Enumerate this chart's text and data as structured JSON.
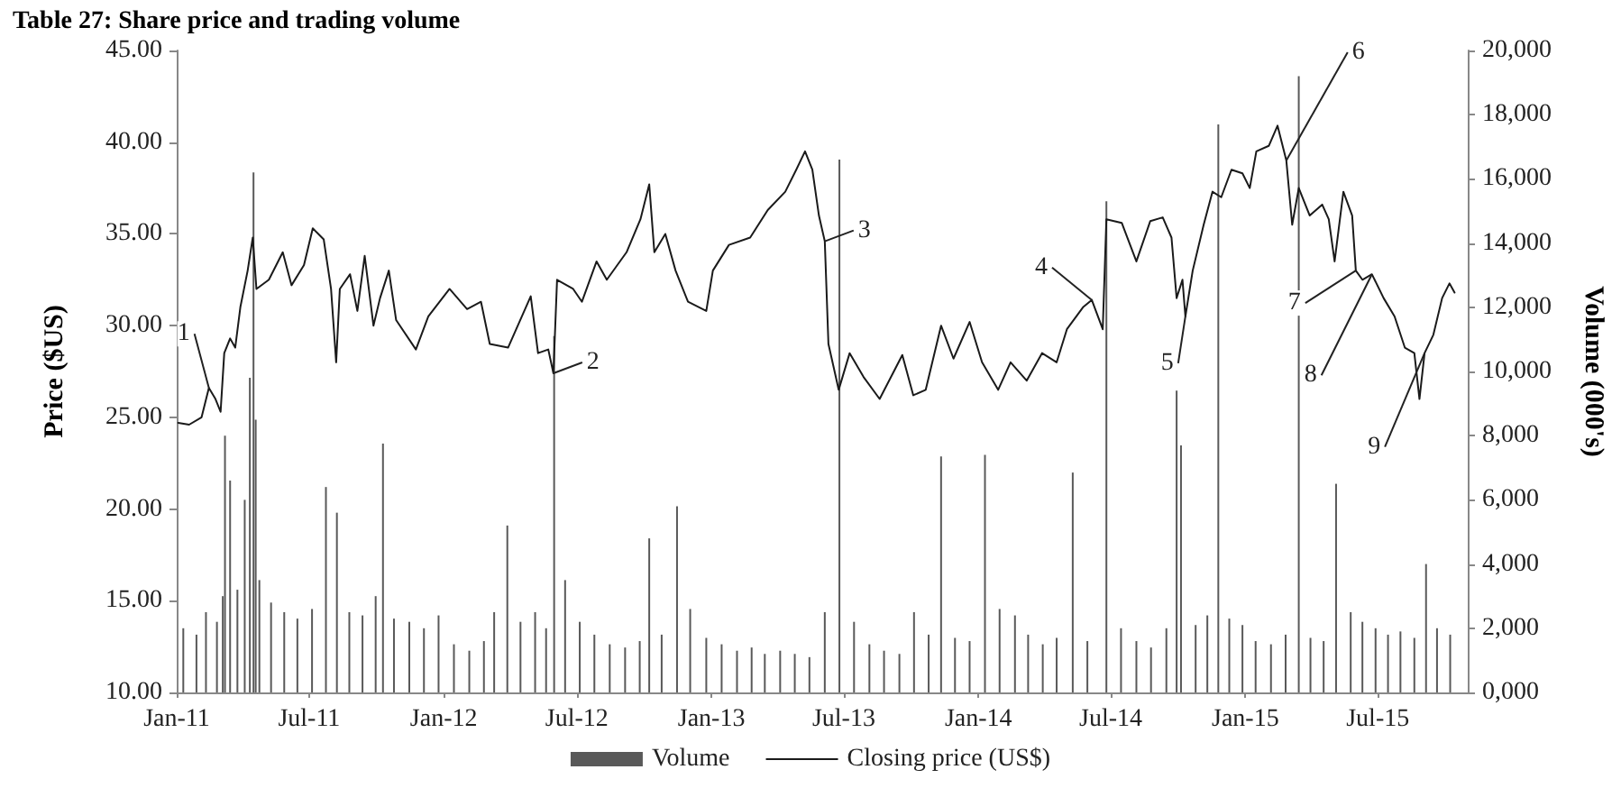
{
  "chart_data": {
    "type": "line",
    "title": "Table 27: Share price and trading volume",
    "ylabel": "Price ($US)",
    "y2label": "Volume (000's)",
    "xlim": [
      "2011-01-01",
      "2015-11-01"
    ],
    "xticks": [
      {
        "value": "2011-01-01",
        "label": "Jan-11"
      },
      {
        "value": "2011-07-01",
        "label": "Jul-11"
      },
      {
        "value": "2012-01-01",
        "label": "Jan-12"
      },
      {
        "value": "2012-07-01",
        "label": "Jul-12"
      },
      {
        "value": "2013-01-01",
        "label": "Jan-13"
      },
      {
        "value": "2013-07-01",
        "label": "Jul-13"
      },
      {
        "value": "2014-01-01",
        "label": "Jan-14"
      },
      {
        "value": "2014-07-01",
        "label": "Jul-14"
      },
      {
        "value": "2015-01-01",
        "label": "Jan-15"
      },
      {
        "value": "2015-07-01",
        "label": "Jul-15"
      }
    ],
    "ylim": [
      10,
      45
    ],
    "yticks": [
      {
        "value": 10,
        "label": "10.00"
      },
      {
        "value": 15,
        "label": "15.00"
      },
      {
        "value": 20,
        "label": "20.00"
      },
      {
        "value": 25,
        "label": "25.00"
      },
      {
        "value": 30,
        "label": "30.00"
      },
      {
        "value": 35,
        "label": "35.00"
      },
      {
        "value": 40,
        "label": "40.00"
      },
      {
        "value": 45,
        "label": "45.00"
      }
    ],
    "y2lim": [
      0,
      20000
    ],
    "y2ticks": [
      {
        "value": 0,
        "label": "0,000"
      },
      {
        "value": 2000,
        "label": "2,000"
      },
      {
        "value": 4000,
        "label": "4,000"
      },
      {
        "value": 6000,
        "label": "6,000"
      },
      {
        "value": 8000,
        "label": "8,000"
      },
      {
        "value": 10000,
        "label": "10,000"
      },
      {
        "value": 12000,
        "label": "12,000"
      },
      {
        "value": 14000,
        "label": "14,000"
      },
      {
        "value": 16000,
        "label": "16,000"
      },
      {
        "value": 18000,
        "label": "18,000"
      },
      {
        "value": 20000,
        "label": "20,000"
      }
    ],
    "grid": false,
    "legend": "bottom",
    "marker": "none",
    "line_style": "solid",
    "series": [
      {
        "name": "Volume",
        "type": "bar",
        "axis": "y2",
        "color": "#595959",
        "x": [
          "2011-01-10",
          "2011-01-28",
          "2011-02-10",
          "2011-02-25",
          "2011-03-05",
          "2011-03-08",
          "2011-03-15",
          "2011-03-25",
          "2011-04-04",
          "2011-04-11",
          "2011-04-16",
          "2011-04-19",
          "2011-04-24",
          "2011-05-10",
          "2011-05-28",
          "2011-06-15",
          "2011-07-05",
          "2011-07-24",
          "2011-08-08",
          "2011-08-25",
          "2011-09-12",
          "2011-09-30",
          "2011-10-10",
          "2011-10-25",
          "2011-11-15",
          "2011-12-05",
          "2011-12-25",
          "2012-01-15",
          "2012-02-05",
          "2012-02-25",
          "2012-03-10",
          "2012-03-28",
          "2012-04-15",
          "2012-05-05",
          "2012-05-20",
          "2012-05-31",
          "2012-06-15",
          "2012-07-05",
          "2012-07-25",
          "2012-08-15",
          "2012-09-05",
          "2012-09-25",
          "2012-10-08",
          "2012-10-25",
          "2012-11-15",
          "2012-12-03",
          "2012-12-25",
          "2013-01-15",
          "2013-02-05",
          "2013-02-25",
          "2013-03-15",
          "2013-04-05",
          "2013-04-25",
          "2013-05-15",
          "2013-06-05",
          "2013-06-25",
          "2013-07-15",
          "2013-08-05",
          "2013-08-25",
          "2013-09-15",
          "2013-10-05",
          "2013-10-25",
          "2013-11-11",
          "2013-11-30",
          "2013-12-20",
          "2014-01-10",
          "2014-01-30",
          "2014-02-20",
          "2014-03-10",
          "2014-03-30",
          "2014-04-18",
          "2014-05-10",
          "2014-05-30",
          "2014-06-25",
          "2014-07-15",
          "2014-08-05",
          "2014-08-25",
          "2014-09-15",
          "2014-09-29",
          "2014-10-05",
          "2014-10-25",
          "2014-11-10",
          "2014-11-25",
          "2014-12-10",
          "2014-12-28",
          "2015-01-15",
          "2015-02-05",
          "2015-02-25",
          "2015-03-15",
          "2015-03-31",
          "2015-04-18",
          "2015-05-05",
          "2015-05-25",
          "2015-06-10",
          "2015-06-28",
          "2015-07-15",
          "2015-08-01",
          "2015-08-20",
          "2015-09-05",
          "2015-09-20",
          "2015-10-08"
        ],
        "values": [
          2000,
          1800,
          2500,
          2200,
          3000,
          8000,
          6600,
          3200,
          6000,
          9800,
          16200,
          8500,
          3500,
          2800,
          2500,
          2300,
          2600,
          6400,
          5600,
          2500,
          2400,
          3000,
          7750,
          2300,
          2200,
          2000,
          2400,
          1500,
          1300,
          1600,
          2500,
          5200,
          2200,
          2500,
          2000,
          11100,
          3500,
          2200,
          1800,
          1500,
          1400,
          1600,
          4800,
          1800,
          5800,
          2600,
          1700,
          1500,
          1300,
          1400,
          1200,
          1300,
          1200,
          1100,
          2500,
          16600,
          2200,
          1500,
          1300,
          1200,
          2500,
          1800,
          7350,
          1700,
          1600,
          7400,
          2600,
          2400,
          1800,
          1500,
          1700,
          6850,
          1600,
          15300,
          2000,
          1600,
          1400,
          2000,
          9400,
          7700,
          2100,
          2400,
          17700,
          2300,
          2100,
          1600,
          1500,
          1800,
          19200,
          1700,
          1600,
          6500,
          2500,
          2200,
          2000,
          1800,
          1900,
          1700,
          4000,
          2000,
          1800
        ]
      },
      {
        "name": "Closing price (US$)",
        "color": "#1a1a1a",
        "x": [
          "2011-01-03",
          "2011-01-18",
          "2011-02-04",
          "2011-02-14",
          "2011-02-23",
          "2011-03-02",
          "2011-03-07",
          "2011-03-15",
          "2011-03-22",
          "2011-03-29",
          "2011-04-08",
          "2011-04-15",
          "2011-04-20",
          "2011-05-07",
          "2011-05-26",
          "2011-06-07",
          "2011-06-24",
          "2011-07-06",
          "2011-07-21",
          "2011-07-31",
          "2011-08-07",
          "2011-08-12",
          "2011-08-26",
          "2011-09-05",
          "2011-09-15",
          "2011-09-27",
          "2011-10-06",
          "2011-10-18",
          "2011-10-28",
          "2011-11-24",
          "2011-12-11",
          "2012-01-09",
          "2012-02-02",
          "2012-02-21",
          "2012-03-04",
          "2012-03-29",
          "2012-04-29",
          "2012-05-09",
          "2012-05-23",
          "2012-05-30",
          "2012-06-04",
          "2012-06-26",
          "2012-07-08",
          "2012-07-28",
          "2012-08-11",
          "2012-09-07",
          "2012-09-26",
          "2012-10-08",
          "2012-10-15",
          "2012-10-30",
          "2012-11-13",
          "2012-11-30",
          "2012-12-25",
          "2013-01-03",
          "2013-01-25",
          "2013-02-23",
          "2013-03-19",
          "2013-04-12",
          "2013-04-27",
          "2013-05-09",
          "2013-05-19",
          "2013-05-28",
          "2013-06-05",
          "2013-06-10",
          "2013-06-24",
          "2013-07-09",
          "2013-07-28",
          "2013-08-19",
          "2013-09-19",
          "2013-10-04",
          "2013-10-21",
          "2013-11-11",
          "2013-11-28",
          "2013-12-20",
          "2014-01-06",
          "2014-01-28",
          "2014-02-14",
          "2014-03-08",
          "2014-03-29",
          "2014-04-18",
          "2014-05-02",
          "2014-05-24",
          "2014-06-05",
          "2014-06-20",
          "2014-06-25",
          "2014-07-16",
          "2014-08-05",
          "2014-08-24",
          "2014-09-10",
          "2014-09-22",
          "2014-09-29",
          "2014-10-07",
          "2014-10-11",
          "2014-10-21",
          "2014-11-05",
          "2014-11-17",
          "2014-11-29",
          "2014-12-13",
          "2014-12-28",
          "2015-01-07",
          "2015-01-16",
          "2015-02-02",
          "2015-02-14",
          "2015-02-26",
          "2015-03-06",
          "2015-03-15",
          "2015-03-30",
          "2015-04-16",
          "2015-04-25",
          "2015-05-03",
          "2015-05-15",
          "2015-05-27",
          "2015-06-01",
          "2015-06-10",
          "2015-06-23",
          "2015-07-09",
          "2015-07-24",
          "2015-08-07",
          "2015-08-20",
          "2015-08-27",
          "2015-09-03",
          "2015-09-15",
          "2015-09-27",
          "2015-10-07",
          "2015-10-14"
        ],
        "values": [
          24.7,
          24.6,
          25.0,
          26.6,
          26.0,
          25.3,
          28.5,
          29.3,
          28.8,
          31.0,
          33.0,
          34.8,
          32.0,
          32.5,
          34.0,
          32.2,
          33.3,
          35.3,
          34.7,
          32.0,
          28.0,
          32.0,
          32.8,
          30.8,
          33.8,
          30.0,
          31.5,
          33.0,
          30.3,
          28.7,
          30.5,
          32.0,
          30.9,
          31.3,
          29.0,
          28.8,
          31.6,
          28.5,
          28.7,
          27.4,
          32.5,
          32.0,
          31.3,
          33.5,
          32.5,
          34.0,
          35.8,
          37.7,
          34.0,
          35.0,
          33.0,
          31.3,
          30.8,
          33.0,
          34.4,
          34.8,
          36.3,
          37.3,
          38.5,
          39.5,
          38.5,
          36.0,
          34.6,
          29.0,
          26.5,
          28.5,
          27.2,
          26.0,
          28.4,
          26.2,
          26.5,
          30.0,
          28.2,
          30.2,
          28.0,
          26.5,
          28.0,
          27.0,
          28.5,
          28.0,
          29.8,
          31.0,
          31.4,
          29.8,
          35.8,
          35.6,
          33.5,
          35.7,
          35.9,
          34.8,
          31.5,
          32.5,
          30.5,
          33.0,
          35.5,
          37.3,
          37.0,
          38.5,
          38.3,
          37.5,
          39.5,
          39.8,
          40.9,
          39.0,
          35.5,
          37.5,
          36.0,
          36.6,
          35.8,
          33.5,
          37.3,
          36.0,
          33.0,
          32.5,
          32.8,
          31.5,
          30.5,
          28.8,
          28.5,
          26.0,
          28.5,
          29.5,
          31.5,
          32.3,
          31.8
        ]
      }
    ],
    "annotations": [
      {
        "text": "1",
        "x": "2011-02-14",
        "y": 26.6
      },
      {
        "text": "2",
        "x": "2012-05-30",
        "y": 27.4
      },
      {
        "text": "3",
        "x": "2013-06-05",
        "y": 34.6
      },
      {
        "text": "4",
        "x": "2014-06-05",
        "y": 31.4
      },
      {
        "text": "5",
        "x": "2014-10-11",
        "y": 30.5
      },
      {
        "text": "6",
        "x": "2015-02-26",
        "y": 39.0
      },
      {
        "text": "7",
        "x": "2015-06-01",
        "y": 33.0
      },
      {
        "text": "8",
        "x": "2015-06-23",
        "y": 32.8
      },
      {
        "text": "9",
        "x": "2015-09-03",
        "y": 28.5
      }
    ]
  }
}
